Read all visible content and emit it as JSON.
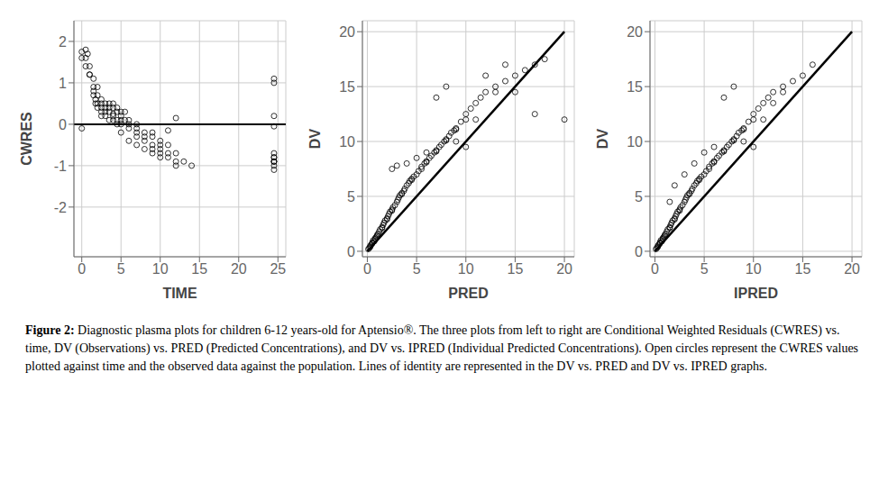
{
  "chart_data": [
    {
      "type": "scatter",
      "xlabel": "TIME",
      "ylabel": "CWRES",
      "xlim": [
        -1,
        26
      ],
      "ylim": [
        -3.2,
        2.5
      ],
      "xticks": [
        0,
        5,
        10,
        15,
        20,
        25
      ],
      "yticks": [
        -2,
        -1,
        0,
        1,
        2
      ],
      "grid": true,
      "series": [
        {
          "type": "scatter",
          "color": "black",
          "marker": "open circle",
          "x": [
            0.5,
            0.5,
            0.75,
            1.0,
            1.0,
            1.5,
            1.5,
            1.5,
            1.75,
            1.75,
            2.0,
            2.0,
            2.0,
            2.5,
            2.5,
            2.5,
            2.5,
            3.0,
            3.0,
            3.0,
            3.5,
            3.5,
            3.5,
            4.0,
            4.0,
            4.0,
            4.0,
            4.5,
            4.5,
            4.5,
            5.0,
            5.0,
            5.0,
            5.0,
            5.5,
            5.5,
            6.0,
            6.0,
            6.0,
            7.0,
            7.0,
            7.0,
            7.0,
            8.0,
            8.0,
            8.0,
            9.0,
            9.0,
            9.0,
            9.0,
            10.0,
            10.0,
            10.0,
            10.0,
            11.0,
            11.0,
            11.0,
            12.0,
            12.0,
            12.0,
            13.0,
            14.0,
            24.5,
            24.5,
            24.5,
            24.5,
            24.5,
            24.5,
            24.5,
            24.5,
            24.5,
            24.5,
            24.5,
            24.5,
            0.0,
            0.0,
            0.0,
            0.5,
            1.0,
            1.5,
            2.0,
            2.5,
            3.0,
            3.5,
            4.0,
            4.5,
            5.0,
            6.0,
            7.0,
            8.0,
            9.0,
            10.0,
            11.0,
            12.0
          ],
          "values": [
            1.6,
            1.8,
            1.7,
            1.4,
            1.2,
            0.8,
            0.9,
            0.7,
            0.6,
            0.5,
            0.5,
            0.7,
            0.4,
            0.4,
            0.3,
            0.2,
            0.5,
            0.4,
            0.2,
            0.3,
            0.5,
            0.3,
            0.1,
            0.5,
            0.4,
            0.2,
            0.1,
            0.4,
            0.3,
            0.1,
            0.3,
            0.2,
            0.1,
            0.0,
            0.3,
            0.1,
            0.1,
            0.0,
            -0.1,
            0.0,
            -0.1,
            -0.2,
            -0.3,
            -0.2,
            -0.3,
            -0.4,
            -0.2,
            -0.3,
            -0.5,
            -0.6,
            -0.4,
            -0.5,
            -0.6,
            -0.7,
            -0.5,
            -0.7,
            -0.8,
            -0.7,
            -0.9,
            -1.0,
            -0.9,
            -1.0,
            -0.9,
            -0.8,
            -0.7,
            -0.8,
            -0.9,
            -1.0,
            -0.9,
            -1.1,
            1.1,
            1.0,
            0.2,
            -0.05,
            1.6,
            1.75,
            -0.1,
            1.4,
            1.2,
            1.1,
            0.9,
            0.6,
            0.5,
            0.4,
            0.25,
            0.0,
            -0.2,
            -0.4,
            -0.5,
            -0.6,
            -0.7,
            -0.8,
            -0.15,
            0.15
          ]
        },
        {
          "type": "hline",
          "color": "black",
          "values": [
            0
          ]
        }
      ]
    },
    {
      "type": "scatter",
      "xlabel": "PRED",
      "ylabel": "DV",
      "xlim": [
        -0.5,
        21
      ],
      "ylim": [
        -0.5,
        21
      ],
      "xticks": [
        0,
        5,
        10,
        15,
        20
      ],
      "yticks": [
        0,
        5,
        10,
        15,
        20
      ],
      "grid": true,
      "series": [
        {
          "type": "scatter",
          "color": "black",
          "marker": "open circle",
          "x": [
            0.1,
            0.2,
            0.3,
            0.4,
            0.5,
            0.6,
            0.7,
            0.8,
            0.9,
            1.0,
            1.1,
            1.2,
            1.3,
            1.5,
            1.6,
            1.7,
            1.8,
            2.0,
            2.1,
            2.2,
            2.3,
            2.5,
            2.6,
            2.8,
            3.0,
            3.1,
            3.2,
            3.3,
            3.5,
            3.7,
            3.8,
            4.0,
            4.2,
            4.3,
            4.5,
            4.7,
            5.0,
            5.2,
            5.5,
            5.8,
            6.0,
            6.3,
            6.5,
            6.8,
            7.0,
            7.3,
            7.5,
            7.8,
            8.0,
            8.3,
            8.5,
            8.8,
            9.0,
            9.5,
            10.0,
            10.5,
            11.0,
            11.5,
            12.0,
            13.0,
            14.0,
            15.0,
            16.0,
            17.0,
            18.0,
            2.5,
            3.0,
            4.0,
            5.0,
            6.0,
            7.0,
            8.0,
            9.0,
            10.0,
            11.0,
            12.0,
            13.0,
            14.0,
            15.0,
            17.0,
            20.0,
            0.3,
            0.5,
            0.8,
            1.0,
            1.5,
            2.0,
            2.5,
            3.5,
            4.5,
            5.5,
            6.0,
            7.0,
            8.0,
            9.0,
            10.0
          ],
          "values": [
            0.2,
            0.3,
            0.5,
            0.6,
            0.8,
            1.0,
            0.9,
            1.2,
            1.3,
            1.5,
            1.6,
            1.8,
            2.0,
            2.2,
            2.4,
            2.6,
            2.8,
            3.0,
            3.2,
            3.4,
            3.6,
            3.8,
            4.0,
            4.2,
            4.5,
            4.7,
            4.9,
            5.1,
            5.3,
            5.5,
            5.7,
            6.0,
            6.2,
            6.4,
            6.6,
            6.8,
            7.0,
            7.3,
            7.5,
            8.0,
            8.2,
            8.5,
            8.7,
            9.0,
            9.2,
            9.5,
            9.7,
            10.0,
            10.2,
            10.5,
            10.8,
            11.0,
            11.2,
            11.8,
            12.0,
            13.0,
            13.5,
            14.0,
            14.5,
            15.0,
            15.5,
            16.0,
            16.5,
            17.0,
            17.5,
            7.5,
            7.8,
            8.0,
            8.5,
            9.0,
            14.0,
            15.0,
            10.0,
            9.5,
            12.0,
            16.0,
            14.5,
            17.0,
            14.5,
            12.5,
            12.0,
            0.4,
            0.7,
            1.1,
            1.4,
            2.1,
            2.9,
            3.7,
            5.2,
            6.5,
            7.7,
            8.1,
            9.1,
            10.1,
            11.1,
            12.5
          ]
        },
        {
          "type": "line",
          "color": "black",
          "x": [
            0,
            20
          ],
          "values": [
            0,
            20
          ]
        }
      ]
    },
    {
      "type": "scatter",
      "xlabel": "IPRED",
      "ylabel": "DV",
      "xlim": [
        -0.5,
        21
      ],
      "ylim": [
        -0.5,
        21
      ],
      "xticks": [
        0,
        5,
        10,
        15,
        20
      ],
      "yticks": [
        0,
        5,
        10,
        15,
        20
      ],
      "grid": true,
      "series": [
        {
          "type": "scatter",
          "color": "black",
          "marker": "open circle",
          "x": [
            0.1,
            0.2,
            0.3,
            0.4,
            0.5,
            0.6,
            0.7,
            0.8,
            0.9,
            1.0,
            1.1,
            1.2,
            1.3,
            1.5,
            1.6,
            1.7,
            1.8,
            2.0,
            2.1,
            2.2,
            2.3,
            2.5,
            2.6,
            2.8,
            3.0,
            3.1,
            3.2,
            3.3,
            3.5,
            3.7,
            3.8,
            4.0,
            4.2,
            4.3,
            4.5,
            4.7,
            5.0,
            5.2,
            5.5,
            5.8,
            6.0,
            6.3,
            6.5,
            6.8,
            7.0,
            7.3,
            7.5,
            7.8,
            8.0,
            8.3,
            8.5,
            8.8,
            9.0,
            9.5,
            10.0,
            10.5,
            11.0,
            11.5,
            12.0,
            13.0,
            14.0,
            15.0,
            1.5,
            2.0,
            3.0,
            4.0,
            5.0,
            6.0,
            7.0,
            8.0,
            9.0,
            10.0,
            11.0,
            12.0,
            13.0,
            16.0,
            0.3,
            0.5,
            0.8,
            1.0,
            1.5,
            2.0,
            2.5,
            3.5,
            4.5,
            5.5,
            6.0,
            7.0,
            8.0,
            9.0,
            10.0
          ],
          "values": [
            0.2,
            0.3,
            0.5,
            0.6,
            0.8,
            1.0,
            0.9,
            1.2,
            1.3,
            1.5,
            1.6,
            1.8,
            2.0,
            2.2,
            2.4,
            2.6,
            2.8,
            3.0,
            3.2,
            3.4,
            3.6,
            3.8,
            4.0,
            4.2,
            4.5,
            4.7,
            4.9,
            5.1,
            5.3,
            5.5,
            5.7,
            6.0,
            6.2,
            6.4,
            6.6,
            6.8,
            7.0,
            7.3,
            7.5,
            8.0,
            8.2,
            8.5,
            8.7,
            9.0,
            9.2,
            9.5,
            9.7,
            10.0,
            10.2,
            10.5,
            10.8,
            11.0,
            11.2,
            11.8,
            12.0,
            13.0,
            13.5,
            14.0,
            14.5,
            15.0,
            15.5,
            16.0,
            4.5,
            6.0,
            7.0,
            8.0,
            9.0,
            9.5,
            14.0,
            15.0,
            10.0,
            9.5,
            12.0,
            13.5,
            14.5,
            17.0,
            0.4,
            0.7,
            1.1,
            1.4,
            2.1,
            2.9,
            3.7,
            5.2,
            6.5,
            7.7,
            8.1,
            9.1,
            10.1,
            11.1,
            12.5
          ]
        },
        {
          "type": "line",
          "color": "black",
          "x": [
            0,
            20
          ],
          "values": [
            0,
            20
          ]
        }
      ]
    }
  ],
  "annotations": [
    "Figure 2:",
    "Diagnostic plasma plots for children 6-12 years-old for Aptensio®. The three plots from left to right are Conditional Weighted Residuals (CWRES) vs. time, DV (Observations) vs. PRED (Predicted Concentrations), and DV vs. IPRED (Individual Predicted Concentrations). Open circles represent the CWRES values plotted against time and the observed data against the population. Lines of identity are represented in the DV vs. PRED and DV vs. IPRED graphs."
  ]
}
